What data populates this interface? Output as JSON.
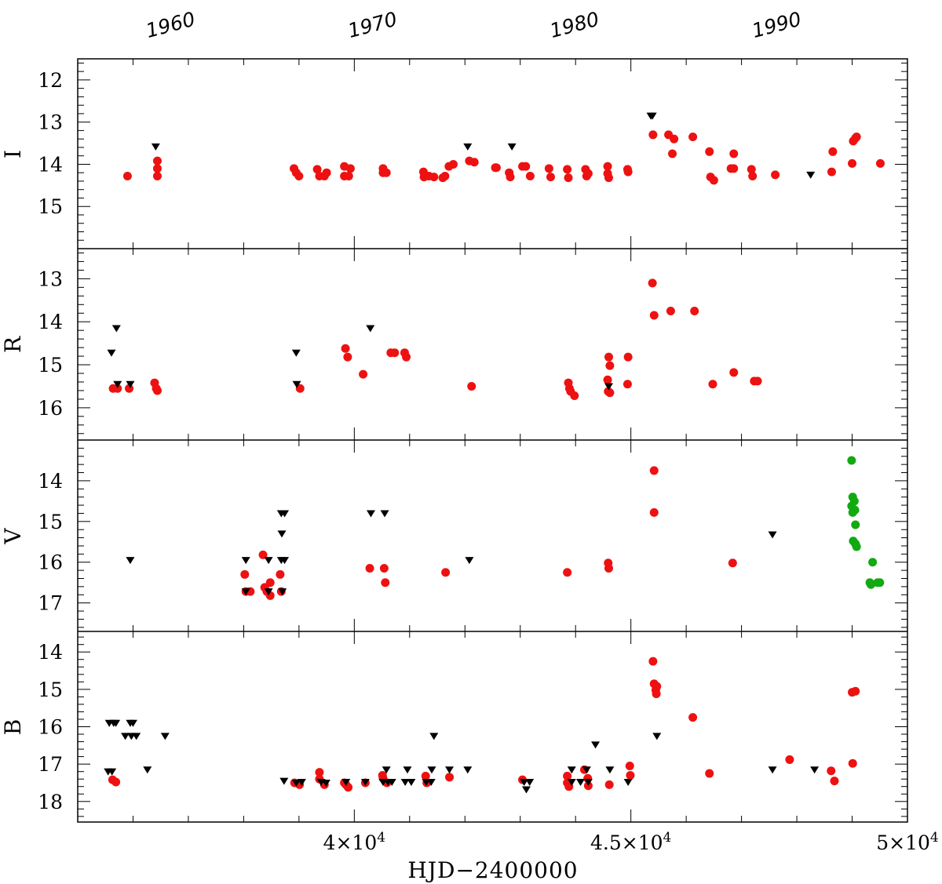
{
  "chart_data": {
    "type": "scatter",
    "xlabel": "HJD−2400000",
    "xlim": [
      35000,
      50000
    ],
    "x_ticks": [
      {
        "value": 40000,
        "label": "4×10",
        "exp": "4"
      },
      {
        "value": 45000,
        "label": "4.5×10",
        "exp": "4"
      },
      {
        "value": 50000,
        "label": "5×10",
        "exp": "4"
      }
    ],
    "top_axis_years": [
      {
        "value": 36935,
        "label": "1960"
      },
      {
        "value": 40587,
        "label": "1970"
      },
      {
        "value": 44239,
        "label": "1980"
      },
      {
        "value": 47892,
        "label": "1990"
      }
    ],
    "series_styles": {
      "red_points": "#ee1111",
      "upper_limits": "#000000",
      "green_points": "#11aa11"
    },
    "panels": [
      {
        "name": "I",
        "ylabel": "I",
        "ylim": [
          16.0,
          11.5
        ],
        "y_ticks": [
          12,
          13,
          14,
          15
        ],
        "red_points": [
          [
            35900,
            14.28
          ],
          [
            36440,
            13.92
          ],
          [
            36440,
            14.1
          ],
          [
            36440,
            14.28
          ],
          [
            38910,
            14.1
          ],
          [
            38950,
            14.2
          ],
          [
            39000,
            14.28
          ],
          [
            39330,
            14.12
          ],
          [
            39370,
            14.28
          ],
          [
            39500,
            14.2
          ],
          [
            39460,
            14.28
          ],
          [
            39820,
            14.05
          ],
          [
            39820,
            14.28
          ],
          [
            39930,
            14.1
          ],
          [
            39900,
            14.28
          ],
          [
            40520,
            14.1
          ],
          [
            40580,
            14.2
          ],
          [
            40520,
            14.2
          ],
          [
            41250,
            14.18
          ],
          [
            41260,
            14.3
          ],
          [
            41350,
            14.28
          ],
          [
            41440,
            14.3
          ],
          [
            41600,
            14.32
          ],
          [
            41640,
            14.28
          ],
          [
            41710,
            14.05
          ],
          [
            41790,
            14.0
          ],
          [
            42170,
            13.95
          ],
          [
            42080,
            13.92
          ],
          [
            42550,
            14.08
          ],
          [
            42570,
            14.08
          ],
          [
            42800,
            14.2
          ],
          [
            42820,
            14.3
          ],
          [
            43040,
            14.05
          ],
          [
            43100,
            14.05
          ],
          [
            43180,
            14.28
          ],
          [
            43520,
            14.1
          ],
          [
            43550,
            14.3
          ],
          [
            43850,
            14.12
          ],
          [
            43870,
            14.32
          ],
          [
            44180,
            14.12
          ],
          [
            44200,
            14.28
          ],
          [
            44230,
            14.22
          ],
          [
            44580,
            14.05
          ],
          [
            44580,
            14.22
          ],
          [
            44600,
            14.32
          ],
          [
            44940,
            14.12
          ],
          [
            44950,
            14.18
          ],
          [
            45400,
            13.3
          ],
          [
            45680,
            13.3
          ],
          [
            45780,
            13.4
          ],
          [
            45750,
            13.75
          ],
          [
            46120,
            13.35
          ],
          [
            46420,
            13.7
          ],
          [
            46440,
            14.3
          ],
          [
            46500,
            14.38
          ],
          [
            46810,
            14.1
          ],
          [
            46860,
            14.1
          ],
          [
            46860,
            13.75
          ],
          [
            47180,
            14.12
          ],
          [
            47200,
            14.28
          ],
          [
            47610,
            14.25
          ],
          [
            48630,
            14.18
          ],
          [
            48650,
            13.7
          ],
          [
            49000,
            13.98
          ],
          [
            49020,
            13.45
          ],
          [
            49080,
            13.35
          ],
          [
            49060,
            13.38
          ],
          [
            49510,
            13.98
          ]
        ],
        "upper_limits": [
          [
            36410,
            13.58
          ],
          [
            42050,
            13.58
          ],
          [
            42850,
            13.58
          ],
          [
            45390,
            12.85
          ],
          [
            45360,
            12.85
          ],
          [
            48250,
            14.25
          ]
        ],
        "green_points": []
      },
      {
        "name": "R",
        "ylabel": "R",
        "ylim": [
          16.75,
          12.3
        ],
        "y_ticks": [
          13,
          14,
          15,
          16
        ],
        "red_points": [
          [
            35640,
            15.55
          ],
          [
            35720,
            15.55
          ],
          [
            35930,
            15.55
          ],
          [
            36390,
            15.42
          ],
          [
            36420,
            15.55
          ],
          [
            36440,
            15.6
          ],
          [
            39020,
            15.55
          ],
          [
            39840,
            14.62
          ],
          [
            39880,
            14.82
          ],
          [
            40160,
            15.22
          ],
          [
            40660,
            14.72
          ],
          [
            40730,
            14.72
          ],
          [
            40910,
            14.72
          ],
          [
            40940,
            14.82
          ],
          [
            42120,
            15.5
          ],
          [
            43870,
            15.42
          ],
          [
            43890,
            15.55
          ],
          [
            43910,
            15.62
          ],
          [
            43980,
            15.72
          ],
          [
            44600,
            14.82
          ],
          [
            44620,
            15.02
          ],
          [
            44580,
            15.35
          ],
          [
            44590,
            15.62
          ],
          [
            44620,
            15.65
          ],
          [
            44950,
            14.82
          ],
          [
            44940,
            15.45
          ],
          [
            45390,
            13.1
          ],
          [
            45420,
            13.85
          ],
          [
            45720,
            13.75
          ],
          [
            46150,
            13.75
          ],
          [
            46480,
            15.45
          ],
          [
            46860,
            15.18
          ],
          [
            47230,
            15.38
          ],
          [
            47290,
            15.38
          ]
        ],
        "upper_limits": [
          [
            35610,
            14.72
          ],
          [
            35700,
            14.15
          ],
          [
            35720,
            15.45
          ],
          [
            35950,
            15.45
          ],
          [
            38950,
            14.72
          ],
          [
            38960,
            15.45
          ],
          [
            40290,
            14.15
          ],
          [
            44600,
            15.5
          ]
        ],
        "green_points": []
      },
      {
        "name": "V",
        "ylabel": "V",
        "ylim": [
          17.7,
          13.0
        ],
        "y_ticks": [
          14,
          15,
          16,
          17
        ],
        "red_points": [
          [
            38020,
            16.3
          ],
          [
            38040,
            16.72
          ],
          [
            38120,
            16.72
          ],
          [
            38350,
            15.82
          ],
          [
            38380,
            16.62
          ],
          [
            38480,
            16.5
          ],
          [
            38480,
            16.82
          ],
          [
            38420,
            16.72
          ],
          [
            38660,
            16.3
          ],
          [
            38680,
            16.72
          ],
          [
            40280,
            16.15
          ],
          [
            40540,
            16.15
          ],
          [
            40560,
            16.5
          ],
          [
            41650,
            16.25
          ],
          [
            43850,
            16.25
          ],
          [
            44590,
            16.02
          ],
          [
            44600,
            16.15
          ],
          [
            45420,
            13.75
          ],
          [
            45420,
            14.78
          ],
          [
            46840,
            16.02
          ]
        ],
        "upper_limits": [
          [
            35950,
            15.95
          ],
          [
            38040,
            15.95
          ],
          [
            38040,
            16.72
          ],
          [
            38450,
            15.95
          ],
          [
            38450,
            16.72
          ],
          [
            38680,
            14.8
          ],
          [
            38740,
            14.8
          ],
          [
            38690,
            15.3
          ],
          [
            38680,
            15.95
          ],
          [
            38740,
            15.95
          ],
          [
            38700,
            16.72
          ],
          [
            40300,
            14.8
          ],
          [
            40550,
            14.8
          ],
          [
            42080,
            15.95
          ],
          [
            47560,
            15.32
          ]
        ],
        "green_points": [
          [
            48990,
            13.5
          ],
          [
            49010,
            14.4
          ],
          [
            49040,
            14.5
          ],
          [
            48990,
            14.62
          ],
          [
            49050,
            14.72
          ],
          [
            49010,
            14.78
          ],
          [
            49060,
            15.08
          ],
          [
            49020,
            15.48
          ],
          [
            49060,
            15.55
          ],
          [
            49080,
            15.62
          ],
          [
            49370,
            16.0
          ],
          [
            49320,
            16.5
          ],
          [
            49340,
            16.55
          ],
          [
            49460,
            16.5
          ],
          [
            49500,
            16.5
          ]
        ],
        "green_note": ""
      },
      {
        "name": "B",
        "ylabel": "B",
        "ylim": [
          18.55,
          13.45
        ],
        "y_ticks": [
          14,
          15,
          16,
          17,
          18
        ],
        "red_points": [
          [
            35630,
            17.42
          ],
          [
            35690,
            17.48
          ],
          [
            38920,
            17.5
          ],
          [
            39010,
            17.55
          ],
          [
            39370,
            17.22
          ],
          [
            39370,
            17.4
          ],
          [
            39460,
            17.55
          ],
          [
            39820,
            17.5
          ],
          [
            39850,
            17.55
          ],
          [
            39890,
            17.62
          ],
          [
            40200,
            17.5
          ],
          [
            40510,
            17.3
          ],
          [
            40520,
            17.38
          ],
          [
            40590,
            17.5
          ],
          [
            41290,
            17.32
          ],
          [
            41310,
            17.5
          ],
          [
            41720,
            17.35
          ],
          [
            43040,
            17.42
          ],
          [
            43850,
            17.32
          ],
          [
            43850,
            17.5
          ],
          [
            43880,
            17.6
          ],
          [
            44160,
            17.15
          ],
          [
            44220,
            17.38
          ],
          [
            44230,
            17.58
          ],
          [
            44610,
            17.55
          ],
          [
            44980,
            17.05
          ],
          [
            44990,
            17.3
          ],
          [
            45400,
            14.25
          ],
          [
            45420,
            14.85
          ],
          [
            45470,
            14.92
          ],
          [
            45450,
            15.02
          ],
          [
            45460,
            15.12
          ],
          [
            46120,
            15.75
          ],
          [
            46420,
            17.25
          ],
          [
            47870,
            16.88
          ],
          [
            48620,
            17.18
          ],
          [
            48680,
            17.45
          ],
          [
            49010,
            16.98
          ],
          [
            49000,
            15.08
          ],
          [
            49060,
            15.05
          ]
        ],
        "upper_limits": [
          [
            35570,
            15.9
          ],
          [
            35650,
            15.9
          ],
          [
            35690,
            15.9
          ],
          [
            35550,
            17.2
          ],
          [
            35620,
            17.2
          ],
          [
            35860,
            16.25
          ],
          [
            35950,
            15.9
          ],
          [
            36000,
            15.9
          ],
          [
            35970,
            16.25
          ],
          [
            36060,
            16.25
          ],
          [
            36260,
            17.15
          ],
          [
            36580,
            16.25
          ],
          [
            38730,
            17.45
          ],
          [
            38950,
            17.5
          ],
          [
            39050,
            17.48
          ],
          [
            39400,
            17.48
          ],
          [
            39490,
            17.5
          ],
          [
            39850,
            17.48
          ],
          [
            40200,
            17.48
          ],
          [
            40520,
            17.48
          ],
          [
            40580,
            17.15
          ],
          [
            40610,
            17.48
          ],
          [
            40680,
            17.48
          ],
          [
            40920,
            17.48
          ],
          [
            40960,
            17.15
          ],
          [
            41030,
            17.48
          ],
          [
            41300,
            17.48
          ],
          [
            41390,
            17.48
          ],
          [
            41440,
            16.25
          ],
          [
            41400,
            17.15
          ],
          [
            41720,
            17.15
          ],
          [
            42050,
            17.15
          ],
          [
            43070,
            17.48
          ],
          [
            43170,
            17.48
          ],
          [
            43110,
            17.68
          ],
          [
            43930,
            17.15
          ],
          [
            43930,
            17.48
          ],
          [
            44090,
            17.48
          ],
          [
            44200,
            17.15
          ],
          [
            44230,
            17.48
          ],
          [
            44360,
            16.48
          ],
          [
            44620,
            17.15
          ],
          [
            44950,
            17.48
          ],
          [
            45470,
            16.25
          ],
          [
            47560,
            17.15
          ],
          [
            48320,
            17.15
          ]
        ],
        "green_points": []
      }
    ]
  }
}
